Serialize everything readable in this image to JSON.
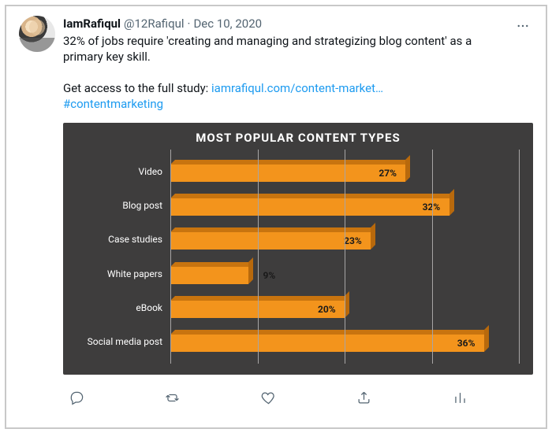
{
  "tweet": {
    "display_name": "IamRafiqul",
    "handle": "@12Rafiqul",
    "separator": "·",
    "date": "Dec 10, 2020",
    "body_line1": "32% of jobs require 'creating and managing and strategizing blog content' as a primary key skill.",
    "body_line2_prefix": "Get access to the full study: ",
    "body_link": "iamrafiqul.com/content-market…",
    "hashtag": "#contentmarketing"
  },
  "chart": {
    "type": "bar-horizontal-3d",
    "title": "MOST POPULAR CONTENT TYPES",
    "background_color": "#3e3d3d",
    "bar_color": "#f3941c",
    "bar_top_color": "#c8740f",
    "bar_side_color": "#b8690c",
    "grid_color": "#a7a5a5",
    "label_color": "#ffffff",
    "title_fontsize": 15,
    "label_fontsize": 12,
    "value_fontsize": 12,
    "xlim": [
      0,
      40
    ],
    "gridlines_at": [
      0,
      10,
      20,
      30,
      40
    ],
    "categories": [
      "Video",
      "Blog post",
      "Case studies",
      "White papers",
      "eBook",
      "Social media post"
    ],
    "values": [
      27,
      32,
      23,
      9,
      20,
      36
    ],
    "value_labels": [
      "27%",
      "32%",
      "23%",
      "9%",
      "20%",
      "36%"
    ]
  },
  "actions": {
    "reply": "Reply",
    "retweet": "Retweet",
    "like": "Like",
    "share": "Share",
    "analytics": "Analytics",
    "more": "More"
  }
}
